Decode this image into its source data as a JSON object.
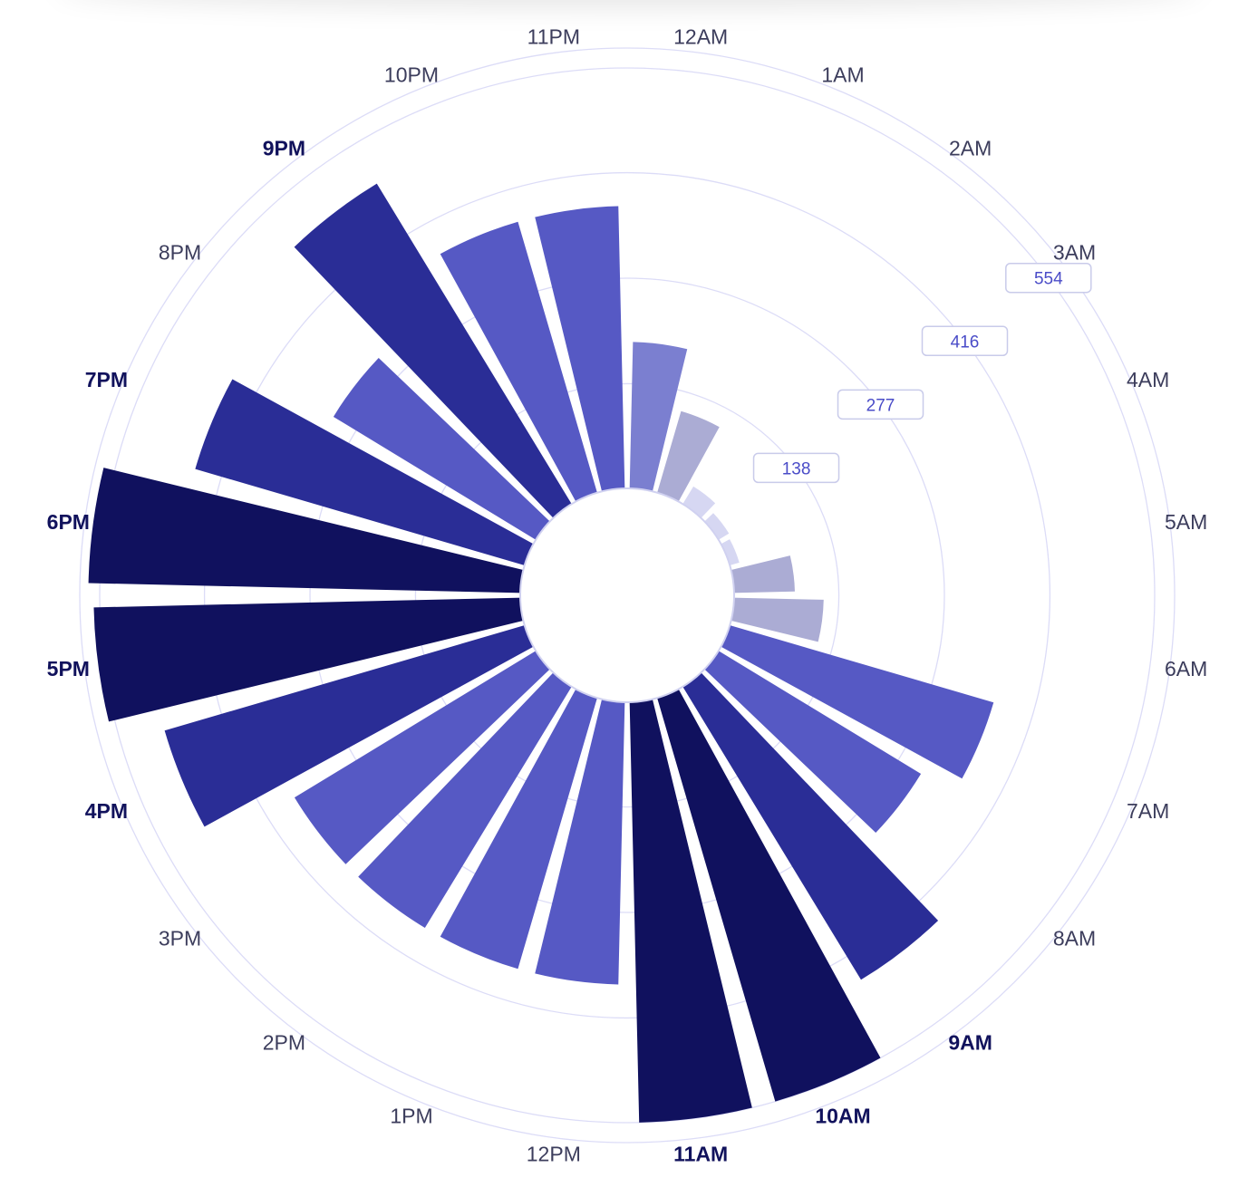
{
  "chart_data": {
    "type": "radial-bar",
    "title": "",
    "categories": [
      "12AM",
      "1AM",
      "2AM",
      "3AM",
      "4AM",
      "5AM",
      "6AM",
      "7AM",
      "8AM",
      "9AM",
      "10AM",
      "11AM",
      "12PM",
      "1PM",
      "2PM",
      "3PM",
      "4PM",
      "5PM",
      "6PM",
      "7PM",
      "8PM",
      "9PM",
      "10PM",
      "11PM"
    ],
    "values": [
      193,
      112,
      27,
      16,
      13,
      80,
      118,
      362,
      312,
      452,
      554,
      554,
      372,
      372,
      372,
      372,
      494,
      562,
      569,
      452,
      312,
      494,
      372,
      372
    ],
    "highlighted": [
      "9AM",
      "10AM",
      "11AM",
      "4PM",
      "5PM",
      "6PM",
      "7PM",
      "9PM"
    ],
    "ring_values": [
      138,
      277,
      416,
      554
    ],
    "ring_labels": [
      "138",
      "277",
      "416",
      "554"
    ],
    "ylim": [
      0,
      554
    ],
    "color_scale": {
      "lightest": "#d6d7f2",
      "light": "#abacd4",
      "medium_light": "#7b7fd0",
      "medium": "#5659c4",
      "dark": "#2a2d96",
      "darkest": "#10115e"
    },
    "grid": true,
    "legend": "none"
  }
}
